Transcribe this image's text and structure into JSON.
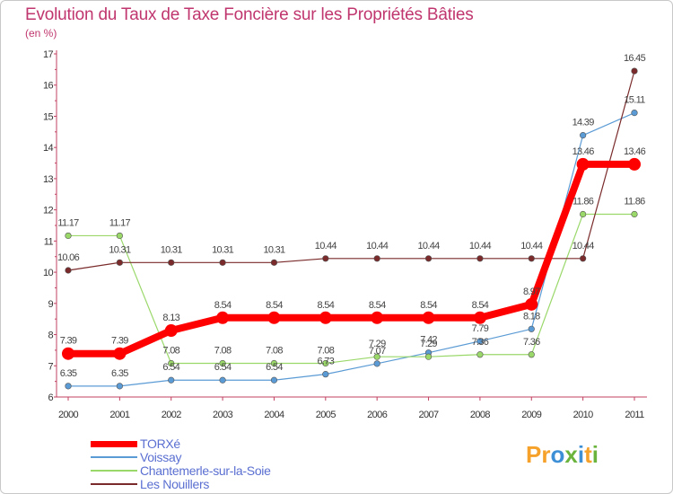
{
  "title": "Evolution du Taux de Taxe Foncière sur les Propriétés Bâties",
  "subtitle": "(en %)",
  "logo": {
    "text": "Proxiti",
    "colors": [
      "#f5a12a",
      "#3d8fd6",
      "#6ab43e"
    ]
  },
  "chart_data": {
    "type": "line",
    "title": "Evolution du Taux de Taxe Foncière sur les Propriétés Bâties",
    "ylabel": "(en %)",
    "xlabel": "",
    "x": [
      2000,
      2001,
      2002,
      2003,
      2004,
      2005,
      2006,
      2007,
      2008,
      2009,
      2010,
      2011
    ],
    "ylim": [
      6,
      17
    ],
    "yticks": [
      6,
      7,
      8,
      9,
      10,
      11,
      12,
      13,
      14,
      15,
      16,
      17
    ],
    "grid": false,
    "legend_position": "bottom-left",
    "series": [
      {
        "name": "TORXé",
        "color": "#ff0000",
        "values": [
          7.39,
          7.39,
          8.13,
          8.54,
          8.54,
          8.54,
          8.54,
          8.54,
          8.54,
          8.97,
          13.46,
          13.46
        ],
        "labels": [
          "7.39",
          "7.39",
          "8.13",
          "8.54",
          "8.54",
          "8.54",
          "8.54",
          "8.54",
          "8.54",
          "8.97",
          "13.46",
          "13.46"
        ]
      },
      {
        "name": "Voissay",
        "color": "#5b9bd5",
        "values": [
          6.35,
          6.35,
          6.54,
          6.54,
          6.54,
          6.73,
          7.07,
          7.42,
          7.79,
          8.18,
          14.39,
          15.11
        ],
        "labels": [
          "6.35",
          "6.35",
          "6.54",
          "6.54",
          "6.54",
          "6.73",
          "7.07",
          "7.42",
          "7.79",
          "8.18",
          "14.39",
          "15.11"
        ]
      },
      {
        "name": "Chantemerle-sur-la-Soie",
        "color": "#9ad86a",
        "values": [
          11.17,
          11.17,
          7.08,
          7.08,
          7.08,
          7.08,
          7.29,
          7.29,
          7.36,
          7.36,
          11.86,
          11.86
        ],
        "labels": [
          "11.17",
          "11.17",
          "7.08",
          "7.08",
          "7.08",
          "7.08",
          "7.29",
          "7.29",
          "7.36",
          "7.36",
          "11.86",
          "11.86"
        ]
      },
      {
        "name": "Les Nouillers",
        "color": "#7a2a2a",
        "values": [
          10.06,
          10.31,
          10.31,
          10.31,
          10.31,
          10.44,
          10.44,
          10.44,
          10.44,
          10.44,
          10.44,
          16.45
        ],
        "labels": [
          "10.06",
          "10.31",
          "10.31",
          "10.31",
          "10.31",
          "10.44",
          "10.44",
          "10.44",
          "10.44",
          "10.44",
          "10.44",
          "16.45"
        ]
      }
    ]
  }
}
